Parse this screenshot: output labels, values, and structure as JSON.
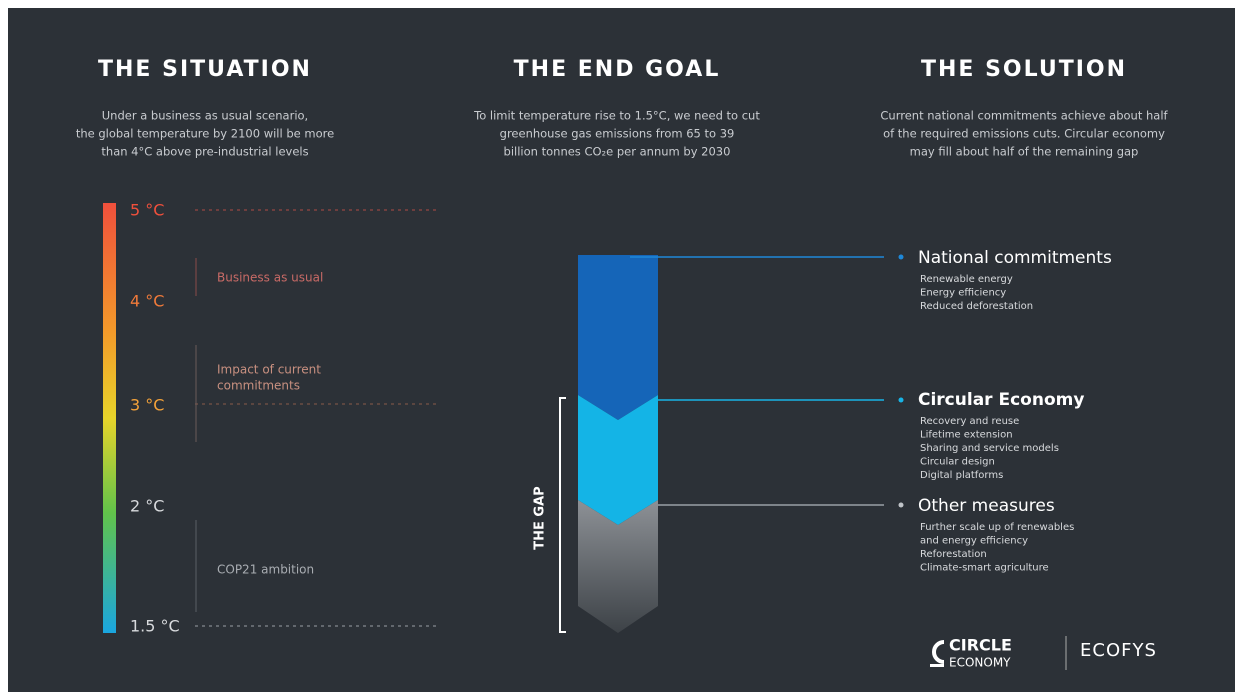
{
  "columns": [
    {
      "title": "THE SITUATION",
      "lines": [
        "Under a business as usual scenario,",
        "the global temperature by 2100 will be more",
        "than 4°C above pre-industrial levels"
      ]
    },
    {
      "title": "THE END GOAL",
      "lines": [
        "To limit temperature rise to 1.5°C, we need to cut",
        "greenhouse gas emissions from 65 to 39",
        "billion tonnes CO₂e per annum by 2030"
      ]
    },
    {
      "title": "THE SOLUTION",
      "lines": [
        "Current national commitments achieve about half",
        "of the required emissions cuts. Circular economy",
        "may fill about half of the remaining gap"
      ]
    }
  ],
  "scale": [
    "5 °C",
    "4 °C",
    "3 °C",
    "2 °C",
    "1.5 °C"
  ],
  "annotations": [
    {
      "lines": [
        "Business as usual"
      ]
    },
    {
      "lines": [
        "Impact of current",
        "commitments"
      ]
    },
    {
      "lines": [
        "COP21 ambition"
      ]
    }
  ],
  "gap_label": "THE GAP",
  "solutions": [
    {
      "title": "National commitments",
      "items": [
        "Renewable energy",
        "Energy efficiency",
        "Reduced deforestation"
      ]
    },
    {
      "title": "Circular Economy",
      "items": [
        "Recovery and reuse",
        "Lifetime extension",
        "Sharing and service models",
        "Circular design",
        "Digital platforms"
      ]
    },
    {
      "title": "Other measures",
      "items": [
        "Further scale up of renewables",
        "and energy efficiency",
        "Reforestation",
        "Climate-smart agriculture"
      ]
    }
  ],
  "logos": {
    "circle": [
      "CIRCLE",
      "ECONOMY"
    ],
    "ecofys": "ECOFYS"
  }
}
